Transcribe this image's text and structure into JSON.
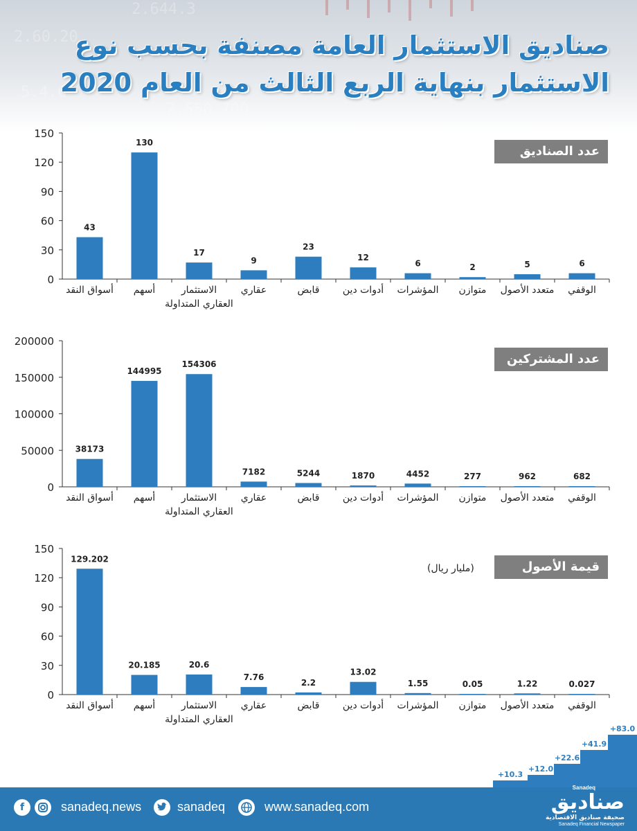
{
  "title": {
    "line1": "صناديق الاستثمار العامة مصنفة بحسب نوع",
    "line2": "الاستثمار بنهاية الربع الثالث من العام 2020"
  },
  "colors": {
    "bar": "#2e7ebf",
    "title": "#2a7fc0",
    "badge": "#7f7f7f",
    "footer": "#2a79b5"
  },
  "chart_data": [
    {
      "type": "bar",
      "title": "عدد الصناديق",
      "categories": [
        "أسواق النقد",
        "أسهم",
        "الاستثمار\nالعقاري المتداولة",
        "عقاري",
        "قابض",
        "أدوات دين",
        "المؤشرات",
        "متوازن",
        "متعدد الأصول",
        "الوقفي"
      ],
      "values": [
        43,
        130,
        17,
        9,
        23,
        12,
        6,
        2,
        5,
        6
      ],
      "value_labels": [
        "43",
        "130",
        "17",
        "9",
        "23",
        "12",
        "6",
        "2",
        "5",
        "6"
      ],
      "yticks": [
        "0",
        "30",
        "60",
        "90",
        "120",
        "150"
      ],
      "ylim": [
        0,
        150
      ],
      "grid": false
    },
    {
      "type": "bar",
      "title": "عدد المشتركين",
      "categories": [
        "أسواق النقد",
        "أسهم",
        "الاستثمار\nالعقاري المتداولة",
        "عقاري",
        "قابض",
        "أدوات دين",
        "المؤشرات",
        "متوازن",
        "متعدد الأصول",
        "الوقفي"
      ],
      "values": [
        38173,
        144995,
        154306,
        7182,
        5244,
        1870,
        4452,
        277,
        962,
        682
      ],
      "value_labels": [
        "38173",
        "144995",
        "154306",
        "7182",
        "5244",
        "1870",
        "4452",
        "277",
        "962",
        "682"
      ],
      "yticks": [
        "0",
        "50000",
        "100000",
        "150000",
        "200000"
      ],
      "ylim": [
        0,
        200000
      ],
      "grid": false
    },
    {
      "type": "bar",
      "title": "قيمة الأصول",
      "unit": "(مليار ريال)",
      "categories": [
        "أسواق النقد",
        "أسهم",
        "الاستثمار\nالعقاري المتداولة",
        "عقاري",
        "قابض",
        "أدوات دين",
        "المؤشرات",
        "متوازن",
        "متعدد الأصول",
        "الوقفي"
      ],
      "values": [
        129.202,
        20.185,
        20.6,
        7.76,
        2.2,
        13.02,
        1.55,
        0.05,
        1.22,
        0.027
      ],
      "value_labels": [
        "129.202",
        "20.185",
        "20.6",
        "7.76",
        "2.2",
        "13.02",
        "1.55",
        "0.05",
        "1.22",
        "0.027"
      ],
      "yticks": [
        "0",
        "30",
        "60",
        "90",
        "120",
        "150"
      ],
      "ylim": [
        0,
        150
      ],
      "grid": false
    }
  ],
  "decoration": {
    "step_labels": [
      "+10.3",
      "+12.0",
      "+22.6",
      "+41.9",
      "+83.0"
    ]
  },
  "footer": {
    "social_handle": "sanadeq.news",
    "twitter_handle": "sanadeq",
    "website": "www.sanadeq.com",
    "brand_en": "Sanadeq",
    "brand_ar": "صناديق",
    "brand_sub_ar": "صحيفة صناديق الاقتصادية",
    "brand_sub_en": "Sanadeq Financial Newspaper",
    "icons": [
      "facebook-icon",
      "instagram-icon",
      "twitter-icon",
      "globe-icon"
    ]
  }
}
